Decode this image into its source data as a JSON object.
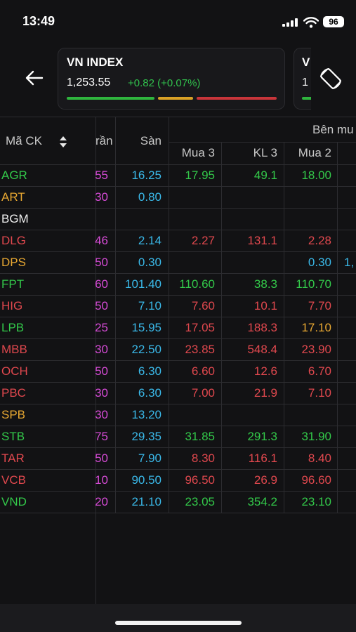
{
  "status": {
    "time": "13:49",
    "battery": "96"
  },
  "index_card": {
    "name": "VN INDEX",
    "value": "1,253.55",
    "change": "+0.82 (+0.07%)",
    "bar_colors": {
      "up": "#2fb53e",
      "flat": "#d9a126",
      "down": "#c8353a"
    },
    "next_card_name": "V",
    "next_card_value": "1"
  },
  "table": {
    "headers": {
      "symbol": "Mã CK",
      "tran": "rần",
      "san": "Sàn",
      "group": "Bên mu",
      "mua3": "Mua 3",
      "kl3": "KL 3",
      "mua2": "Mua 2"
    },
    "colors": {
      "green": "#33c94a",
      "red": "#e0484e",
      "yellow": "#e8a832",
      "white": "#f0f0f0",
      "cyan": "#3ab8e8",
      "magenta": "#d64bd6"
    },
    "rows": [
      {
        "symbol": "AGR",
        "color": "green",
        "tran": "55",
        "san": "16.25",
        "mua3": "17.95",
        "mua3_color": "green",
        "kl3": "49.1",
        "kl3_color": "green",
        "mua2": "18.00",
        "mua2_color": "green",
        "extra": ""
      },
      {
        "symbol": "ART",
        "color": "yellow",
        "tran": "30",
        "san": "0.80",
        "mua3": "",
        "mua3_color": "green",
        "kl3": "",
        "kl3_color": "green",
        "mua2": "",
        "mua2_color": "green",
        "extra": ""
      },
      {
        "symbol": "BGM",
        "color": "white",
        "tran": "",
        "san": "",
        "mua3": "",
        "mua3_color": "green",
        "kl3": "",
        "kl3_color": "green",
        "mua2": "",
        "mua2_color": "green",
        "extra": ""
      },
      {
        "symbol": "DLG",
        "color": "red",
        "tran": "46",
        "san": "2.14",
        "mua3": "2.27",
        "mua3_color": "red",
        "kl3": "131.1",
        "kl3_color": "red",
        "mua2": "2.28",
        "mua2_color": "red",
        "extra": ""
      },
      {
        "symbol": "DPS",
        "color": "yellow",
        "tran": "50",
        "san": "0.30",
        "mua3": "",
        "mua3_color": "green",
        "kl3": "",
        "kl3_color": "green",
        "mua2": "0.30",
        "mua2_color": "cyan",
        "extra": "1,"
      },
      {
        "symbol": "FPT",
        "color": "green",
        "tran": "60",
        "san": "101.40",
        "mua3": "110.60",
        "mua3_color": "green",
        "kl3": "38.3",
        "kl3_color": "green",
        "mua2": "110.70",
        "mua2_color": "green",
        "extra": ""
      },
      {
        "symbol": "HIG",
        "color": "red",
        "tran": "50",
        "san": "7.10",
        "mua3": "7.60",
        "mua3_color": "red",
        "kl3": "10.1",
        "kl3_color": "red",
        "mua2": "7.70",
        "mua2_color": "red",
        "extra": ""
      },
      {
        "symbol": "LPB",
        "color": "green",
        "tran": "25",
        "san": "15.95",
        "mua3": "17.05",
        "mua3_color": "red",
        "kl3": "188.3",
        "kl3_color": "red",
        "mua2": "17.10",
        "mua2_color": "yellow",
        "extra": ""
      },
      {
        "symbol": "MBB",
        "color": "red",
        "tran": "30",
        "san": "22.50",
        "mua3": "23.85",
        "mua3_color": "red",
        "kl3": "548.4",
        "kl3_color": "red",
        "mua2": "23.90",
        "mua2_color": "red",
        "extra": ""
      },
      {
        "symbol": "OCH",
        "color": "red",
        "tran": "50",
        "san": "6.30",
        "mua3": "6.60",
        "mua3_color": "red",
        "kl3": "12.6",
        "kl3_color": "red",
        "mua2": "6.70",
        "mua2_color": "red",
        "extra": ""
      },
      {
        "symbol": "PBC",
        "color": "red",
        "tran": "30",
        "san": "6.30",
        "mua3": "7.00",
        "mua3_color": "red",
        "kl3": "21.9",
        "kl3_color": "red",
        "mua2": "7.10",
        "mua2_color": "red",
        "extra": ""
      },
      {
        "symbol": "SPB",
        "color": "yellow",
        "tran": "30",
        "san": "13.20",
        "mua3": "",
        "mua3_color": "green",
        "kl3": "",
        "kl3_color": "green",
        "mua2": "",
        "mua2_color": "green",
        "extra": ""
      },
      {
        "symbol": "STB",
        "color": "green",
        "tran": "75",
        "san": "29.35",
        "mua3": "31.85",
        "mua3_color": "green",
        "kl3": "291.3",
        "kl3_color": "green",
        "mua2": "31.90",
        "mua2_color": "green",
        "extra": ""
      },
      {
        "symbol": "TAR",
        "color": "red",
        "tran": "50",
        "san": "7.90",
        "mua3": "8.30",
        "mua3_color": "red",
        "kl3": "116.1",
        "kl3_color": "red",
        "mua2": "8.40",
        "mua2_color": "red",
        "extra": ""
      },
      {
        "symbol": "VCB",
        "color": "red",
        "tran": "10",
        "san": "90.50",
        "mua3": "96.50",
        "mua3_color": "red",
        "kl3": "26.9",
        "kl3_color": "red",
        "mua2": "96.60",
        "mua2_color": "red",
        "extra": ""
      },
      {
        "symbol": "VND",
        "color": "green",
        "tran": "20",
        "san": "21.10",
        "mua3": "23.05",
        "mua3_color": "green",
        "kl3": "354.2",
        "kl3_color": "green",
        "mua2": "23.10",
        "mua2_color": "green",
        "extra": ""
      }
    ]
  }
}
